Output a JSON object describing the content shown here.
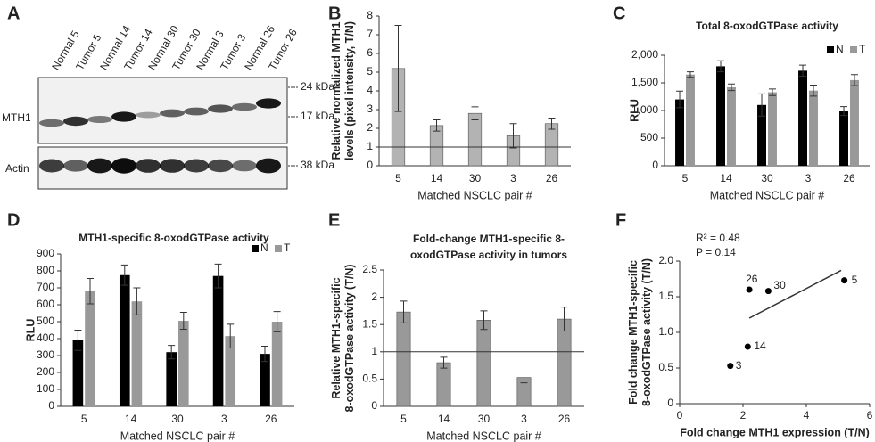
{
  "blot": {
    "panel_label": "A",
    "lanes": [
      "Normal 5",
      "Tumor 5",
      "Normal 14",
      "Tumor 14",
      "Normal 30",
      "Tumor 30",
      "Normal 3",
      "Tumor 3",
      "Normal 26",
      "Tumor 26"
    ],
    "row_labels": [
      "MTH1",
      "Actin"
    ],
    "markers": [
      "24 kDa",
      "17 kDa",
      "38 kDa"
    ]
  },
  "chart_data": [
    {
      "type": "bar",
      "panel_label": "B",
      "ylabel": [
        "Relative normalized MTH1",
        "levels (pixel intensity, T/N)"
      ],
      "xlabel": "Matched NSCLC pair #",
      "categories": [
        "5",
        "14",
        "30",
        "3",
        "26"
      ],
      "values": [
        5.2,
        2.15,
        2.8,
        1.6,
        2.25
      ],
      "errors": [
        2.3,
        0.3,
        0.35,
        0.65,
        0.3
      ],
      "color": "#b3b3b3",
      "reference_line": 1,
      "ylim": [
        0,
        8
      ],
      "yticks": [
        0,
        1,
        2,
        3,
        4,
        5,
        6,
        7,
        8
      ]
    },
    {
      "type": "grouped_bar",
      "panel_label": "C",
      "title": [
        "Total 8-oxodGTPase activity"
      ],
      "ylabel": [
        "RLU"
      ],
      "xlabel": "Matched NSCLC pair #",
      "categories": [
        "5",
        "14",
        "30",
        "3",
        "26"
      ],
      "series": [
        {
          "name": "N",
          "color": "#000000",
          "values": [
            1200,
            1800,
            1100,
            1720,
            990
          ],
          "errors": [
            150,
            100,
            200,
            100,
            80
          ]
        },
        {
          "name": "T",
          "color": "#999999",
          "values": [
            1650,
            1420,
            1330,
            1360,
            1550
          ],
          "errors": [
            50,
            60,
            60,
            100,
            100
          ]
        }
      ],
      "ylim": [
        0,
        2000
      ],
      "yticks": [
        0,
        500,
        {
          "value": 1000,
          "label": "1,000"
        },
        {
          "value": 1500,
          "label": "1,500"
        },
        {
          "value": 2000,
          "label": "2,000"
        }
      ],
      "legend": "top-right"
    },
    {
      "type": "grouped_bar",
      "panel_label": "D",
      "title": [
        "MTH1-specific 8-oxodGTPase activity"
      ],
      "ylabel": [
        "RLU"
      ],
      "xlabel": "Matched NSCLC pair #",
      "categories": [
        "5",
        "14",
        "30",
        "3",
        "26"
      ],
      "series": [
        {
          "name": "N",
          "color": "#000000",
          "values": [
            390,
            775,
            320,
            770,
            310
          ],
          "errors": [
            60,
            60,
            40,
            70,
            45
          ]
        },
        {
          "name": "T",
          "color": "#999999",
          "values": [
            680,
            620,
            505,
            415,
            500
          ],
          "errors": [
            75,
            80,
            50,
            70,
            60
          ]
        }
      ],
      "ylim": [
        0,
        900
      ],
      "yticks": [
        0,
        100,
        200,
        300,
        400,
        500,
        600,
        700,
        800,
        900
      ],
      "legend": "top-right"
    },
    {
      "type": "bar",
      "panel_label": "E",
      "title": [
        "Fold-change MTH1-specific 8-",
        "oxodGTPase activity in tumors"
      ],
      "ylabel": [
        "Relative MTH1-specific",
        "8-oxodGTPase activity (T/N)"
      ],
      "xlabel": "Matched NSCLC pair #",
      "categories": [
        "5",
        "14",
        "30",
        "3",
        "26"
      ],
      "values": [
        1.73,
        0.8,
        1.58,
        0.53,
        1.6
      ],
      "errors": [
        0.2,
        0.1,
        0.17,
        0.1,
        0.22
      ],
      "color": "#999999",
      "reference_line": 1,
      "ylim": [
        0,
        2.5
      ],
      "yticks": [
        0,
        0.5,
        1,
        1.5,
        2,
        2.5
      ]
    },
    {
      "type": "scatter",
      "panel_label": "F",
      "annotations": [
        "R² = 0.48",
        "P = 0.14"
      ],
      "ylabel": [
        "Fold change MTH1-specific",
        "8-oxodGTPase activity (T/N)"
      ],
      "xlabel": "Fold change MTH1 expression  (T/N)",
      "x": [
        5.2,
        2.2,
        2.8,
        2.15,
        1.6
      ],
      "values": [
        1.73,
        1.6,
        1.58,
        0.8,
        0.53
      ],
      "point_labels": [
        "5",
        "26",
        "30",
        "14",
        "3"
      ],
      "color": "#000000",
      "fit_line": {
        "x": [
          2.2,
          5.1
        ],
        "y": [
          1.2,
          1.87
        ]
      },
      "xlim": [
        0,
        6
      ],
      "xticks": [
        0,
        2,
        4,
        6
      ],
      "ylim": [
        0,
        2
      ],
      "yticks": [
        0,
        0.5,
        {
          "value": 1,
          "label": "1.0"
        },
        {
          "value": 1.5,
          "label": "1.5"
        },
        {
          "value": 2,
          "label": "2.0"
        }
      ]
    }
  ]
}
